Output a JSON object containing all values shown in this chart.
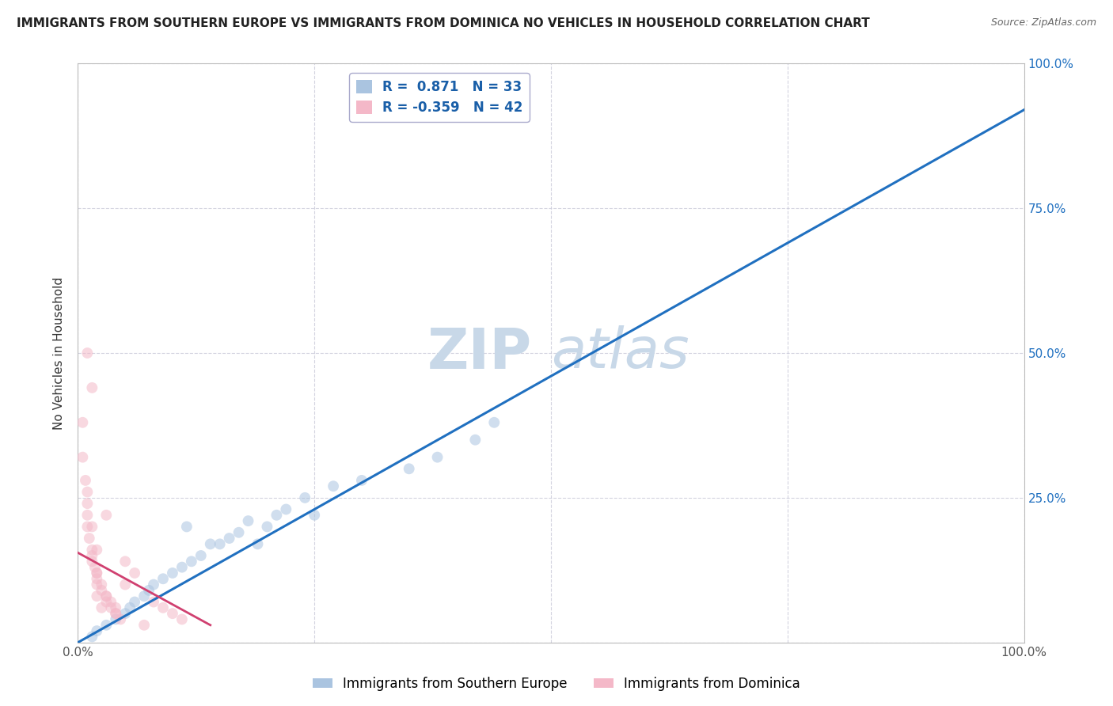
{
  "title": "IMMIGRANTS FROM SOUTHERN EUROPE VS IMMIGRANTS FROM DOMINICA NO VEHICLES IN HOUSEHOLD CORRELATION CHART",
  "source": "Source: ZipAtlas.com",
  "xlabel": "",
  "ylabel": "No Vehicles in Household",
  "xlim": [
    0,
    1.0
  ],
  "ylim": [
    0,
    1.0
  ],
  "xticks": [
    0.0,
    0.25,
    0.5,
    0.75,
    1.0
  ],
  "xticklabels": [
    "0.0%",
    "",
    "",
    "",
    "100.0%"
  ],
  "yticks": [
    0.0,
    0.25,
    0.5,
    0.75,
    1.0
  ],
  "right_yticklabels": [
    "",
    "25.0%",
    "50.0%",
    "75.0%",
    "100.0%"
  ],
  "legend_entries": [
    {
      "label": "Immigrants from Southern Europe",
      "color": "#aac4e0",
      "R": "0.871",
      "N": "33"
    },
    {
      "label": "Immigrants from Dominica",
      "color": "#f4b8c8",
      "R": "-0.359",
      "N": "42"
    }
  ],
  "blue_scatter_x": [
    0.015,
    0.02,
    0.03,
    0.04,
    0.05,
    0.055,
    0.06,
    0.07,
    0.075,
    0.08,
    0.09,
    0.1,
    0.11,
    0.115,
    0.12,
    0.13,
    0.14,
    0.15,
    0.16,
    0.17,
    0.18,
    0.19,
    0.2,
    0.21,
    0.22,
    0.24,
    0.25,
    0.27,
    0.3,
    0.35,
    0.38,
    0.42,
    0.44
  ],
  "blue_scatter_y": [
    0.01,
    0.02,
    0.03,
    0.04,
    0.05,
    0.06,
    0.07,
    0.08,
    0.09,
    0.1,
    0.11,
    0.12,
    0.13,
    0.2,
    0.14,
    0.15,
    0.17,
    0.17,
    0.18,
    0.19,
    0.21,
    0.17,
    0.2,
    0.22,
    0.23,
    0.25,
    0.22,
    0.27,
    0.28,
    0.3,
    0.32,
    0.35,
    0.38
  ],
  "pink_scatter_x": [
    0.005,
    0.005,
    0.008,
    0.01,
    0.01,
    0.01,
    0.012,
    0.015,
    0.015,
    0.015,
    0.018,
    0.02,
    0.02,
    0.02,
    0.02,
    0.025,
    0.025,
    0.03,
    0.03,
    0.03,
    0.035,
    0.035,
    0.04,
    0.04,
    0.04,
    0.045,
    0.05,
    0.05,
    0.06,
    0.07,
    0.08,
    0.09,
    0.1,
    0.11,
    0.01,
    0.015,
    0.02,
    0.025,
    0.03,
    0.015,
    0.02,
    0.01
  ],
  "pink_scatter_y": [
    0.38,
    0.32,
    0.28,
    0.26,
    0.22,
    0.2,
    0.18,
    0.16,
    0.15,
    0.14,
    0.13,
    0.12,
    0.12,
    0.11,
    0.1,
    0.1,
    0.09,
    0.08,
    0.08,
    0.07,
    0.07,
    0.06,
    0.06,
    0.05,
    0.05,
    0.04,
    0.14,
    0.1,
    0.12,
    0.03,
    0.07,
    0.06,
    0.05,
    0.04,
    0.24,
    0.2,
    0.16,
    0.06,
    0.22,
    0.44,
    0.08,
    0.5
  ],
  "blue_line_x": [
    0.0,
    1.0
  ],
  "blue_line_y": [
    0.0,
    0.92
  ],
  "red_line_x": [
    0.0,
    0.14
  ],
  "red_line_y": [
    0.155,
    0.03
  ],
  "background_color": "#ffffff",
  "grid_color": "#c8c8d8",
  "watermark_zip": "ZIP",
  "watermark_atlas": "atlas",
  "watermark_color": "#c8d8e8",
  "title_fontsize": 11,
  "scatter_size": 100,
  "scatter_alpha": 0.55,
  "blue_line_color": "#2070c0",
  "red_line_color": "#d04070",
  "legend_text_color": "#1a5fa8"
}
